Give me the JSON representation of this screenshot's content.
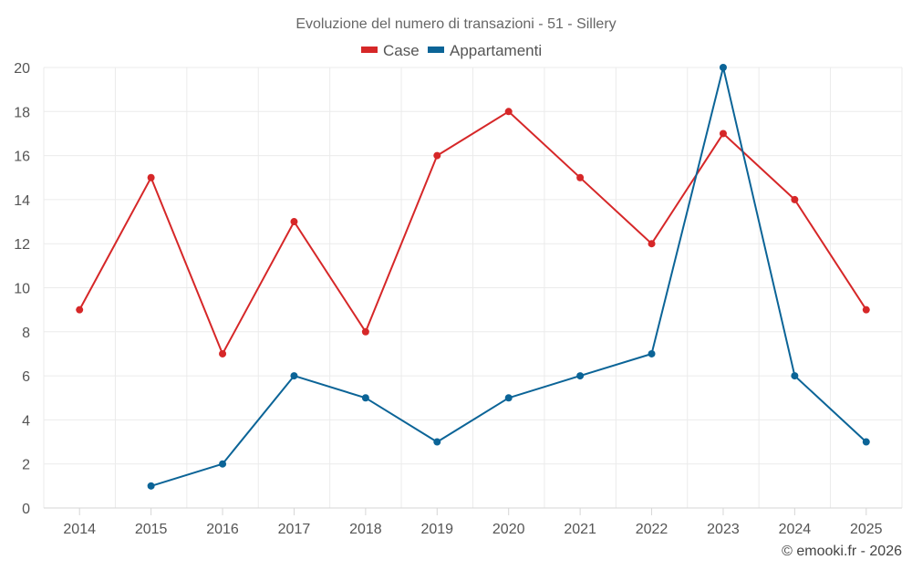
{
  "chart_data": {
    "type": "line",
    "title": "Evoluzione del numero di transazioni - 51 - Sillery",
    "x": [
      "2014",
      "2015",
      "2016",
      "2017",
      "2018",
      "2019",
      "2020",
      "2021",
      "2022",
      "2023",
      "2024",
      "2025"
    ],
    "ylim": [
      0,
      20
    ],
    "yticks": [
      0,
      2,
      4,
      6,
      8,
      10,
      12,
      14,
      16,
      18,
      20
    ],
    "grid": true,
    "legend_position": "top-center",
    "series": [
      {
        "name": "Case",
        "color": "#d62728",
        "values": [
          9,
          15,
          7,
          13,
          8,
          16,
          18,
          15,
          12,
          17,
          14,
          9
        ]
      },
      {
        "name": "Appartamenti",
        "color": "#0b6497",
        "values": [
          null,
          1,
          2,
          6,
          5,
          3,
          5,
          6,
          7,
          20,
          6,
          3
        ]
      }
    ],
    "credit": "© emooki.fr - 2026"
  }
}
